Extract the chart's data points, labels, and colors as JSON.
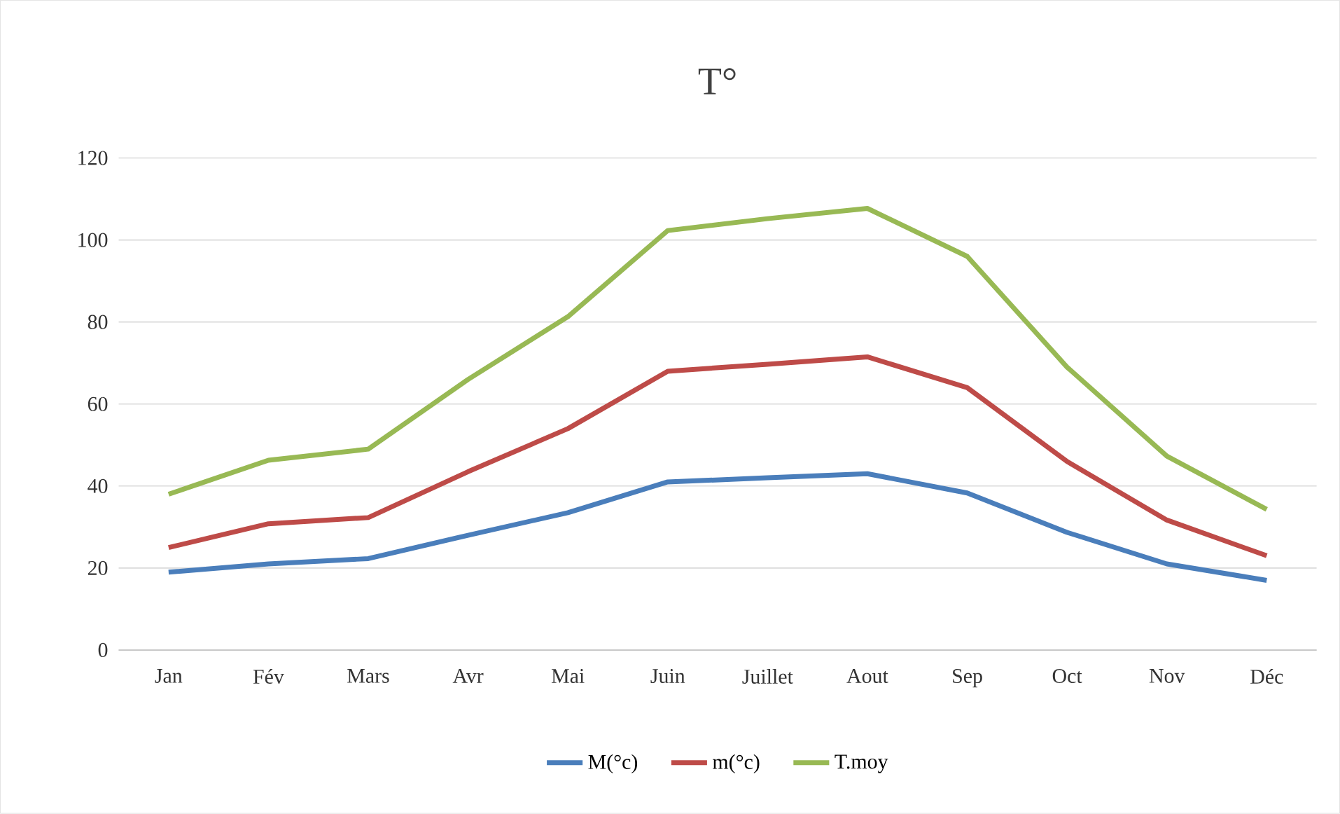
{
  "chart_data": {
    "type": "line",
    "title": "T°",
    "categories": [
      "Jan",
      "Fév",
      "Mars",
      "Avr",
      "Mai",
      "Juin",
      "Juillet",
      "Aout",
      "Sep",
      "Oct",
      "Nov",
      "Déc"
    ],
    "series": [
      {
        "name": "M(°c)",
        "color": "#4a7ebb",
        "values": [
          19,
          21,
          22.3,
          28,
          33.5,
          41,
          42,
          43,
          38.3,
          28.7,
          21,
          17
        ]
      },
      {
        "name": "m(°c)",
        "color": "#be4b48",
        "values": [
          25,
          30.8,
          32.3,
          43.5,
          54,
          68,
          69.7,
          71.5,
          64,
          46,
          31.7,
          23
        ]
      },
      {
        "name": "T.moy",
        "color": "#98b954",
        "values": [
          38,
          46.3,
          49,
          66,
          81.3,
          102.3,
          105.2,
          107.7,
          96,
          69,
          47.3,
          34.3
        ]
      }
    ],
    "ylim": [
      0,
      120
    ],
    "yticks": [
      0,
      20,
      40,
      60,
      80,
      100,
      120
    ],
    "grid": "y",
    "legend": "bottom"
  }
}
